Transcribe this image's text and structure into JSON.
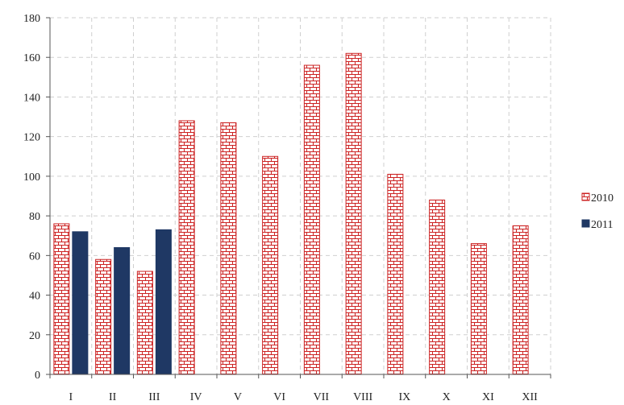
{
  "chart_data": {
    "type": "bar",
    "categories": [
      "I",
      "II",
      "III",
      "IV",
      "V",
      "VI",
      "VII",
      "VIII",
      "IX",
      "X",
      "XI",
      "XII"
    ],
    "series": [
      {
        "name": "2010",
        "values": [
          76,
          58,
          52,
          128,
          127,
          110,
          156,
          162,
          101,
          88,
          66,
          75
        ],
        "color": "#cc2222",
        "fill": "brick-pattern"
      },
      {
        "name": "2011",
        "values": [
          72,
          64,
          73,
          null,
          null,
          null,
          null,
          null,
          null,
          null,
          null,
          null
        ],
        "color": "#1f3864",
        "fill": "solid"
      }
    ],
    "ylim": [
      0,
      180
    ],
    "yticks": [
      0,
      20,
      40,
      60,
      80,
      100,
      120,
      140,
      160,
      180
    ],
    "grid": true,
    "legend": "right"
  }
}
